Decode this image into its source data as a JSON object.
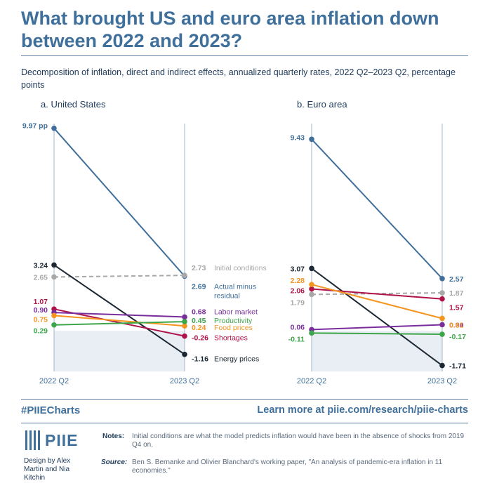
{
  "header": {
    "title": "What brought US and euro area inflation down between 2022 and 2023?",
    "subtitle": "Decomposition of inflation, direct and indirect effects, annualized quarterly rates, 2022 Q2–2023 Q2, percentage points"
  },
  "chart_data": [
    {
      "type": "line",
      "title": "a. United States",
      "x": [
        "2022 Q2",
        "2023 Q2"
      ],
      "ylim": [
        -2.0,
        10.2
      ],
      "series": [
        {
          "name": "Actual minus residual",
          "values": [
            9.97,
            2.69
          ],
          "start_label": "9.97 pp",
          "end_label": "2.69",
          "color": "#3f6f9b",
          "dashed": false
        },
        {
          "name": "Initial conditions",
          "values": [
            2.65,
            2.73
          ],
          "start_label": "2.65",
          "end_label": "2.73",
          "color": "#a8a8a8",
          "dashed": true
        },
        {
          "name": "Energy prices",
          "values": [
            3.24,
            -1.16
          ],
          "start_label": "3.24",
          "end_label": "-1.16",
          "color": "#1b2733",
          "dashed": false
        },
        {
          "name": "Shortages",
          "values": [
            1.07,
            -0.26
          ],
          "start_label": "1.07",
          "end_label": "-0.26",
          "color": "#b0134a",
          "dashed": false
        },
        {
          "name": "Labor market",
          "values": [
            0.9,
            0.68
          ],
          "start_label": "0.90",
          "end_label": "0.68",
          "color": "#7a2e9c",
          "dashed": false
        },
        {
          "name": "Food prices",
          "values": [
            0.75,
            0.24
          ],
          "start_label": "0.75",
          "end_label": "0.24",
          "color": "#f5941e",
          "dashed": false
        },
        {
          "name": "Productivity",
          "values": [
            0.29,
            0.45
          ],
          "start_label": "0.29",
          "end_label": "0.45",
          "color": "#3ea64a",
          "dashed": false
        }
      ]
    },
    {
      "type": "line",
      "title": "b. Euro area",
      "x": [
        "2022 Q2",
        "2023 Q2"
      ],
      "ylim": [
        -2.0,
        10.2
      ],
      "series": [
        {
          "name": "Actual minus residual",
          "values": [
            9.43,
            2.57
          ],
          "start_label": "9.43",
          "end_label": "2.57",
          "color": "#3f6f9b",
          "dashed": false
        },
        {
          "name": "Initial conditions",
          "values": [
            1.79,
            1.87
          ],
          "start_label": "1.79",
          "end_label": "1.87",
          "color": "#a8a8a8",
          "dashed": true
        },
        {
          "name": "Energy prices",
          "values": [
            3.07,
            -1.71
          ],
          "start_label": "3.07",
          "end_label": "-1.71",
          "color": "#1b2733",
          "dashed": false
        },
        {
          "name": "Shortages",
          "values": [
            2.06,
            1.57
          ],
          "start_label": "2.06",
          "end_label": "1.57",
          "color": "#b0134a",
          "dashed": false
        },
        {
          "name": "Labor market",
          "values": [
            0.06,
            0.3
          ],
          "start_label": "0.06",
          "end_label": "0.30",
          "color": "#7a2e9c",
          "dashed": false
        },
        {
          "name": "Food prices",
          "values": [
            2.28,
            0.61
          ],
          "start_label": "2.28",
          "end_label": "0.61",
          "color": "#f5941e",
          "dashed": false
        },
        {
          "name": "Productivity",
          "values": [
            -0.11,
            -0.17
          ],
          "start_label": "-0.11",
          "end_label": "-0.17",
          "color": "#3ea64a",
          "dashed": false
        }
      ]
    }
  ],
  "footer": {
    "hashtag": "#PIIECharts",
    "learn_more": "Learn more at piie.com/research/piie-charts",
    "logo_text": "PIIE",
    "design_credit": "Design by Alex Martin and Nia Kitchin",
    "notes_label": "Notes:",
    "notes_text": "Initial conditions are what the model predicts inflation would have been in the absence of shocks from 2019 Q4 on.",
    "source_label": "Source:",
    "source_text": "Ben S. Bernanke and Olivier Blanchard's working paper, \"An analysis of pandemic-era inflation in 11 economies.\""
  }
}
